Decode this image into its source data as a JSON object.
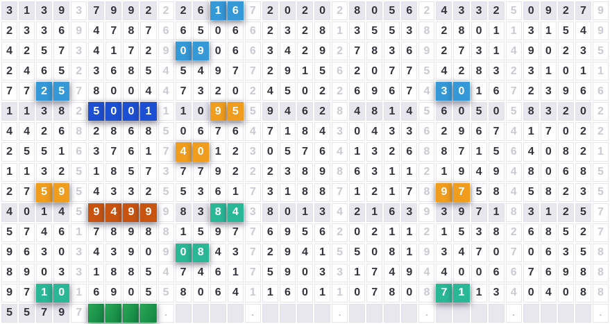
{
  "colors": {
    "blue": "#3598d7",
    "darkblue": "#1d4fd2",
    "orange": "#f09d1d",
    "darkorange": "#c85411",
    "teal": "#2ab795",
    "green": "#2ba655",
    "green2": "#108441",
    "zebra": "#e9e7ee",
    "zebra_border": "#e2e0e8",
    "cell_border": "#e7e5ea",
    "digit": "#33323b",
    "sep_digit": "#cbc9d2",
    "dot": "#b5b0ba"
  },
  "chart_data": {
    "type": "table",
    "title": "",
    "columns": 35,
    "group_size": 5,
    "groups_per_row": 7,
    "legend_note": "each group = 4 main digits + 1 gray separator digit; last row has 4 filled green cells and dot placeholders",
    "rows": [
      "31393799222616720202805624332509279",
      "23369478766506623281355382801131549",
      "42573417290906634292783692731490235",
      "24652368545497729156207754283231011",
      "77257800447320245022696743016723966",
      "11382500111095594628481456050583202",
      "44268286850676471843043362967417022",
      "25516376174012305764132688715640821",
      "11325185737792223898631121949480685",
      "27595433255361731887121789758458235",
      "40145949998384380134216393971831257",
      "57461789881597769562021121538268527",
      "96303439090843729415508193470706358",
      "89033188547461759033174944006676988",
      "97101690558064116011078087113404088",
      "55797    .    .    .    .    .    ."
    ],
    "zebra_rows": [
      0,
      5,
      10,
      15
    ],
    "highlights": [
      {
        "row": 0,
        "cols": [
          12,
          13
        ],
        "color": "blue"
      },
      {
        "row": 2,
        "cols": [
          10,
          11
        ],
        "color": "blue"
      },
      {
        "row": 4,
        "cols": [
          2,
          3
        ],
        "color": "blue"
      },
      {
        "row": 4,
        "cols": [
          25,
          26
        ],
        "color": "blue"
      },
      {
        "row": 5,
        "cols": [
          5,
          6,
          7,
          8
        ],
        "color": "darkblue"
      },
      {
        "row": 5,
        "cols": [
          12,
          13
        ],
        "color": "orange"
      },
      {
        "row": 7,
        "cols": [
          10,
          11
        ],
        "color": "orange"
      },
      {
        "row": 9,
        "cols": [
          2,
          3
        ],
        "color": "orange"
      },
      {
        "row": 9,
        "cols": [
          25,
          26
        ],
        "color": "orange"
      },
      {
        "row": 10,
        "cols": [
          5,
          6,
          7,
          8
        ],
        "color": "darkorange"
      },
      {
        "row": 10,
        "cols": [
          12,
          13
        ],
        "color": "teal"
      },
      {
        "row": 12,
        "cols": [
          10,
          11
        ],
        "color": "teal"
      },
      {
        "row": 14,
        "cols": [
          2,
          3
        ],
        "color": "teal"
      },
      {
        "row": 14,
        "cols": [
          25,
          26
        ],
        "color": "teal"
      },
      {
        "row": 15,
        "cols": [
          5,
          6,
          7,
          8
        ],
        "color": "green"
      }
    ]
  }
}
